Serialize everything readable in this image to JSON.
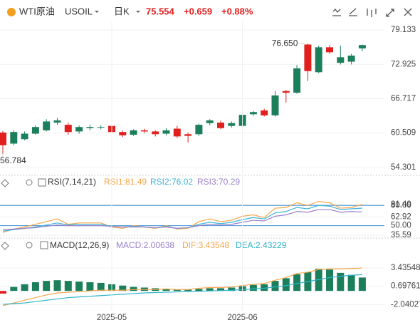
{
  "header": {
    "title": "WTI原油",
    "symbol": "USOIL",
    "period": "日K",
    "price": "75.554",
    "change": "+0.659",
    "change_pct": "+0.88%"
  },
  "chart_data": [
    {
      "type": "candlestick",
      "up_color": "#1c7f5b",
      "down_color": "#e0201f",
      "open": [
        60.6,
        58.6,
        59.4,
        60.4,
        61.0,
        62.4,
        62.0,
        60.8,
        61.4,
        61.5,
        61.8,
        60.7,
        60.2,
        61.0,
        60.8,
        60.4,
        61.3,
        60.3,
        60.3,
        62.3,
        62.4,
        61.8,
        61.8,
        63.9,
        64.6,
        63.7,
        68.1,
        67.8,
        76.5,
        71.5,
        76.0,
        73.2,
        73.4,
        75.8
      ],
      "high": [
        60.9,
        61.0,
        60.8,
        61.9,
        63.0,
        63.2,
        62.4,
        61.9,
        62.0,
        61.9,
        63.3,
        61.0,
        61.2,
        61.3,
        61.0,
        61.4,
        61.8,
        60.6,
        62.2,
        63.0,
        62.7,
        62.6,
        64.1,
        64.5,
        64.9,
        68.1,
        68.3,
        72.8,
        76.65,
        76.3,
        76.4,
        76.3,
        74.8,
        76.5
      ],
      "low": [
        56.784,
        58.3,
        59.2,
        60.2,
        60.8,
        62.0,
        60.2,
        60.4,
        61.0,
        61.2,
        60.5,
        59.8,
        60.0,
        60.5,
        59.9,
        60.1,
        59.6,
        58.8,
        60.0,
        61.9,
        61.2,
        61.5,
        61.6,
        63.6,
        63.5,
        63.5,
        66.0,
        67.6,
        69.9,
        71.3,
        74.8,
        72.9,
        72.9,
        75.3
      ],
      "close": [
        58.3,
        60.7,
        60.4,
        61.6,
        62.6,
        62.8,
        60.7,
        61.6,
        61.6,
        61.6,
        60.7,
        60.1,
        61.0,
        60.8,
        60.3,
        61.0,
        59.9,
        60.0,
        62.0,
        62.8,
        61.4,
        62.3,
        63.8,
        64.3,
        63.7,
        67.3,
        67.8,
        72.2,
        71.7,
        76.0,
        75.1,
        74.2,
        74.5,
        76.4
      ],
      "ylim": [
        53.0,
        80.68
      ],
      "yticks": [
        79.133,
        72.925,
        66.717,
        60.509,
        54.301
      ],
      "annotations": [
        {
          "label": "76.650",
          "value": 76.65
        },
        {
          "label": "56.784",
          "value": 56.784
        }
      ]
    },
    {
      "type": "line",
      "title": "RSI(7,14,21)",
      "ylim": [
        33.7,
        105.7
      ],
      "yticks": [
        {
          "value": 81.49,
          "label": "81.49"
        },
        {
          "value": 80,
          "label": "80.00"
        },
        62.92,
        {
          "value": 50,
          "label": "50.00"
        },
        35.59
      ],
      "reference_lines": [
        80,
        50
      ],
      "reference_color": "#3d8fd6",
      "series": [
        {
          "name": "RSI1",
          "legend_label": "RSI1:81.49",
          "color": "#f5a64a",
          "values": [
            40,
            45,
            48,
            52,
            56,
            60,
            52,
            54,
            54,
            54,
            48,
            46,
            50,
            48,
            46,
            50,
            45,
            46,
            56,
            60,
            56,
            58,
            64,
            66,
            62,
            76,
            77,
            84,
            80,
            86,
            84,
            76,
            77,
            81.49
          ]
        },
        {
          "name": "RSI2",
          "legend_label": "RSI2:76.02",
          "color": "#3fb3d9",
          "values": [
            42,
            44,
            46,
            48,
            51,
            54,
            51,
            52,
            52,
            52,
            49,
            48,
            49,
            48,
            47,
            49,
            46,
            47,
            52,
            55,
            53,
            55,
            59,
            62,
            60,
            69,
            71,
            77,
            75,
            80,
            79,
            74,
            75,
            76.02
          ]
        },
        {
          "name": "RSI3",
          "legend_label": "RSI3:70.29",
          "color": "#9a82c9",
          "values": [
            44,
            45,
            46,
            47,
            49,
            51,
            50,
            50,
            50,
            50,
            49,
            48,
            48,
            48,
            47,
            48,
            46,
            47,
            50,
            52,
            51,
            52,
            55,
            58,
            57,
            64,
            66,
            71,
            70,
            74,
            74,
            70,
            71,
            70.29
          ]
        }
      ]
    },
    {
      "type": "macd",
      "title": "MACD(12,26,9)",
      "ylim": [
        -2.86,
        5.99
      ],
      "yticks": [
        3.43548,
        0.69761,
        -2.04027
      ],
      "categories": [
        null,
        null,
        null,
        null,
        null,
        null,
        null,
        null,
        null,
        null,
        "2025-05",
        null,
        null,
        null,
        null,
        null,
        null,
        null,
        null,
        null,
        null,
        null,
        "2025-06",
        null,
        null,
        null,
        null,
        null,
        null,
        null,
        null,
        null,
        null,
        null
      ],
      "histogram": {
        "name": "MACD",
        "legend_label": "MACD:2.00638",
        "color": "#9a82c9",
        "up_color": "#1c7f5b",
        "down_color": "#e0201f",
        "values": [
          -0.4,
          0.6,
          1.0,
          1.3,
          1.5,
          1.6,
          1.5,
          1.4,
          1.3,
          1.2,
          1.0,
          0.8,
          0.6,
          0.5,
          0.4,
          0.3,
          0.2,
          0.2,
          0.3,
          0.4,
          0.4,
          0.5,
          0.7,
          0.9,
          1.0,
          1.5,
          1.9,
          2.5,
          2.8,
          3.3,
          3.2,
          2.7,
          2.4,
          2.00638
        ]
      },
      "series": [
        {
          "name": "DIF",
          "legend_label": "DIF:3.43548",
          "color": "#f5a64a",
          "values": [
            -2.2,
            -1.8,
            -1.4,
            -1.0,
            -0.6,
            -0.3,
            -0.2,
            -0.1,
            0,
            0.1,
            0.1,
            0.1,
            0.2,
            0.2,
            0.2,
            0.3,
            0.2,
            0.2,
            0.4,
            0.5,
            0.5,
            0.6,
            0.8,
            1.0,
            1.1,
            1.6,
            2.0,
            2.6,
            2.8,
            3.2,
            3.3,
            3.3,
            3.35,
            3.43548
          ]
        },
        {
          "name": "DEA",
          "legend_label": "DEA:2.43229",
          "color": "#2fb3c9",
          "values": [
            -2.0,
            -1.9,
            -1.8,
            -1.6,
            -1.4,
            -1.2,
            -1.0,
            -0.9,
            -0.8,
            -0.7,
            -0.6,
            -0.5,
            -0.4,
            -0.3,
            -0.25,
            -0.2,
            -0.15,
            -0.1,
            -0.05,
            0,
            0.05,
            0.1,
            0.2,
            0.3,
            0.4,
            0.6,
            0.8,
            1.1,
            1.4,
            1.7,
            2.0,
            2.2,
            2.35,
            2.43229
          ]
        }
      ]
    }
  ]
}
